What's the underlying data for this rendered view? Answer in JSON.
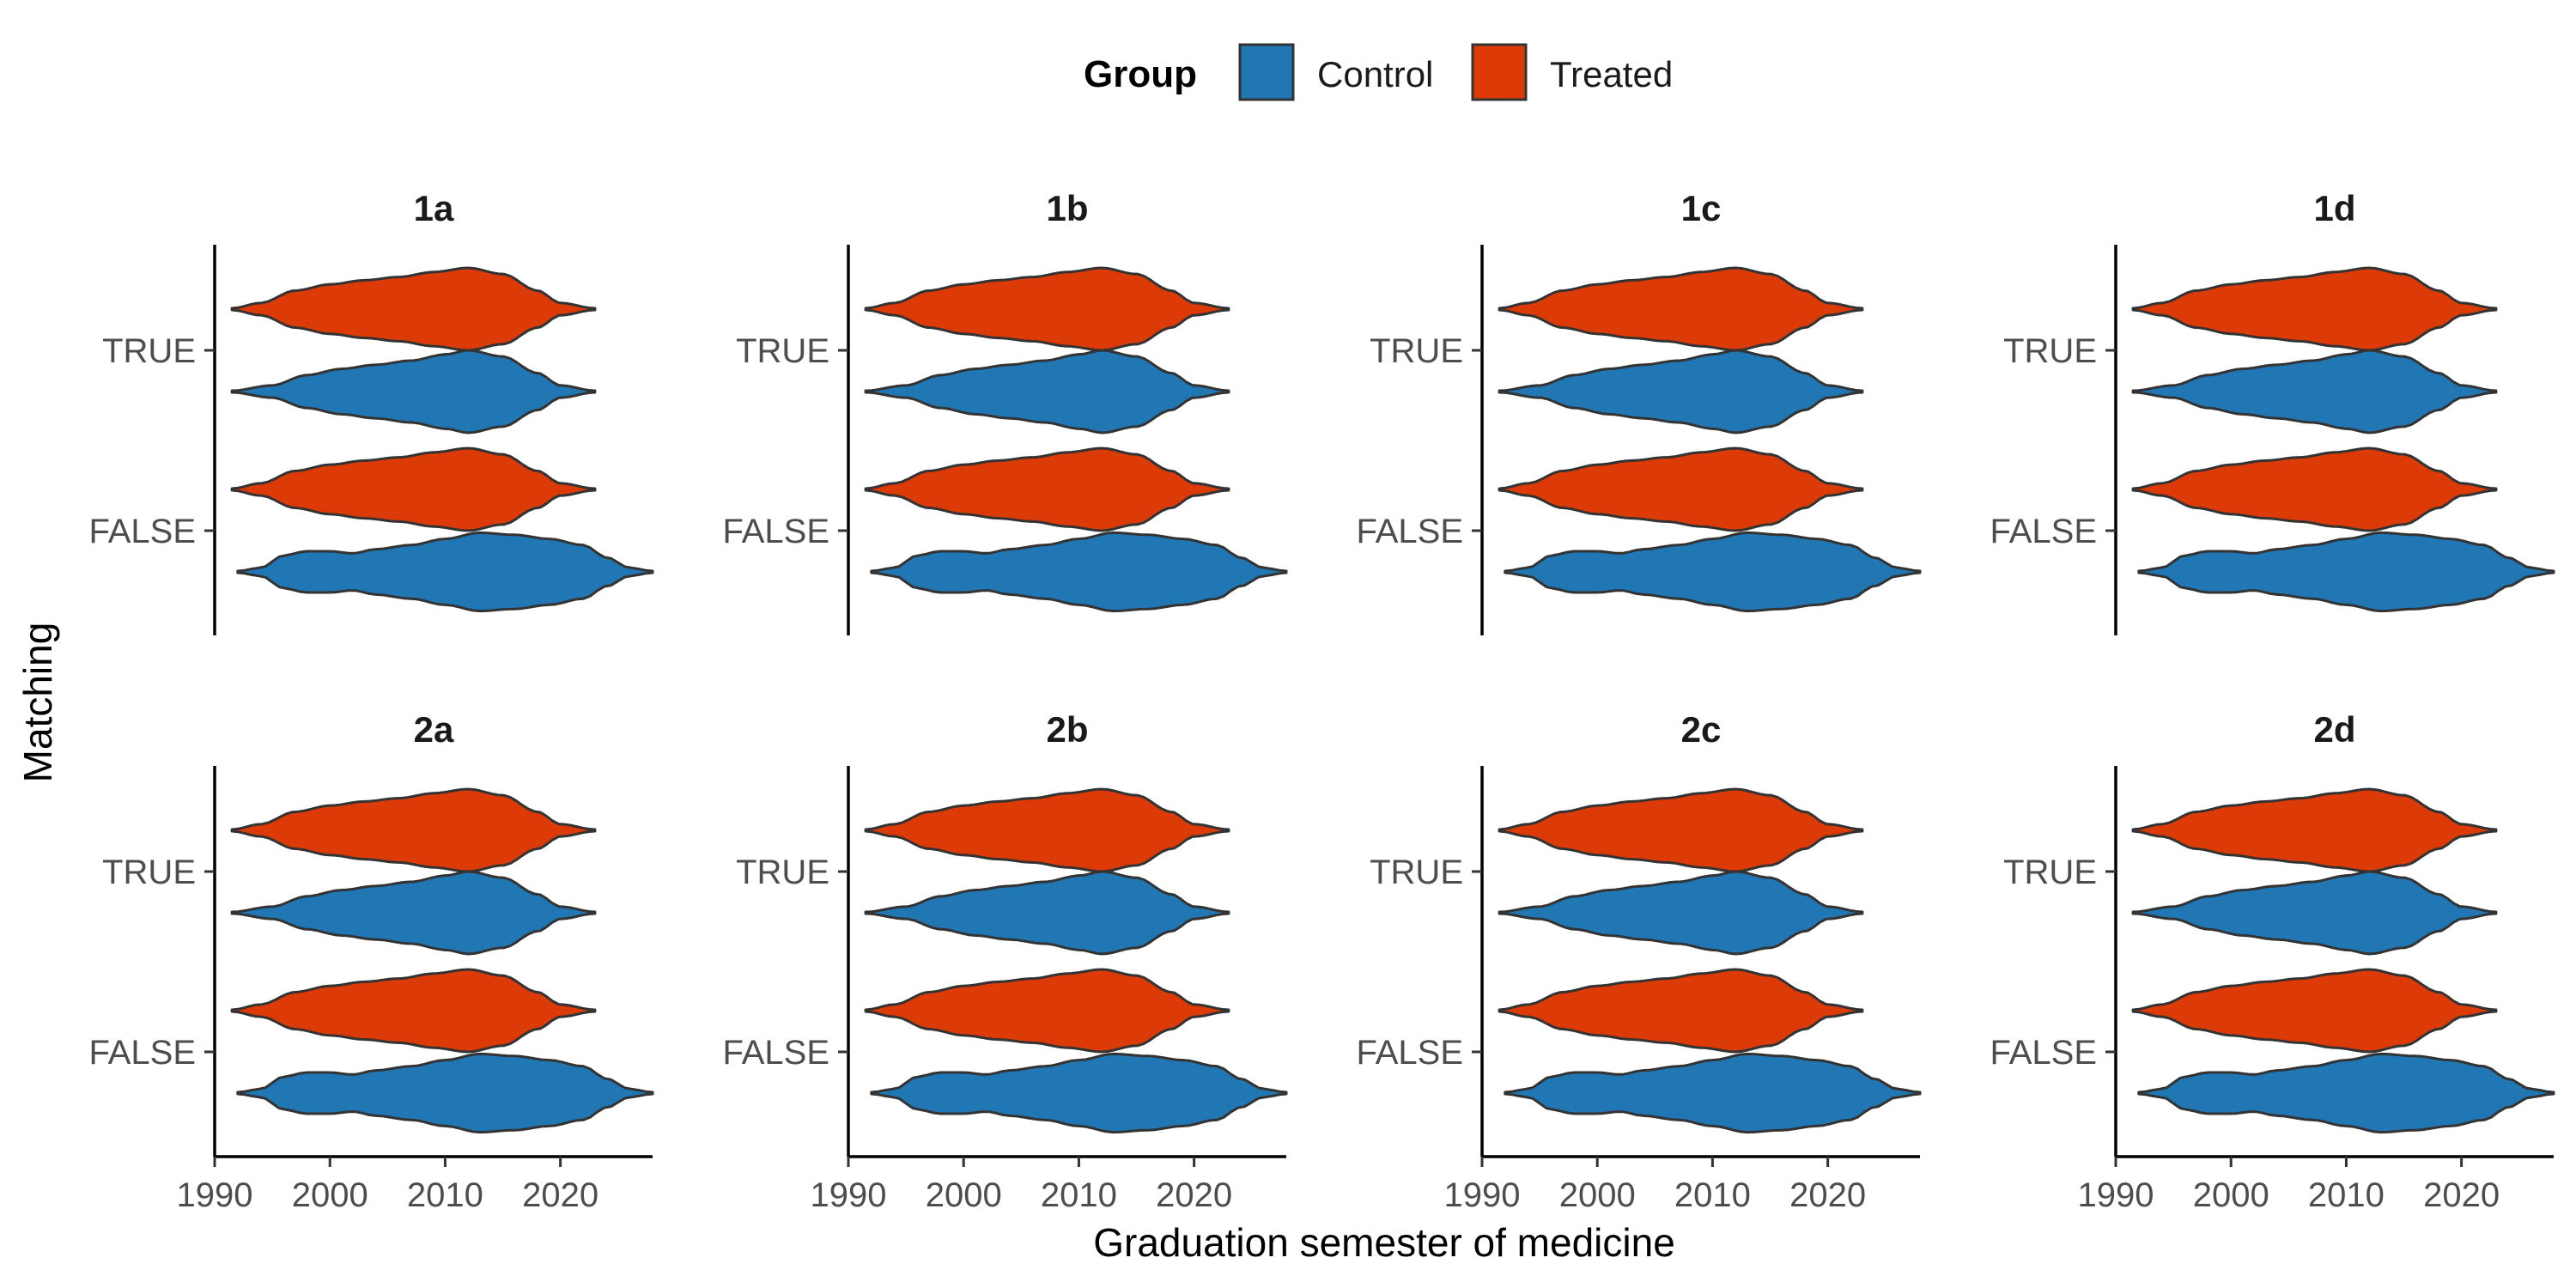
{
  "chart_data": {
    "type": "violin",
    "orientation": "horizontal",
    "xlabel": "Graduation semester of medicine",
    "ylabel": "Matching",
    "xlim": [
      1990,
      2028
    ],
    "x_ticks": [
      1990,
      2000,
      2010,
      2020
    ],
    "y_categories": [
      "TRUE",
      "FALSE"
    ],
    "legend": {
      "title": "Group",
      "position": "top",
      "items": [
        {
          "name": "Control",
          "color": "#2077B4"
        },
        {
          "name": "Treated",
          "color": "#DC3A06"
        }
      ]
    },
    "panels": [
      "1a",
      "1b",
      "1c",
      "1d",
      "2a",
      "2b",
      "2c",
      "2d"
    ],
    "series": [
      {
        "matching": "TRUE",
        "group": "Treated",
        "x_range": [
          1991.5,
          2023
        ],
        "density": [
          [
            1991.5,
            0.02
          ],
          [
            1994,
            0.15
          ],
          [
            1997,
            0.45
          ],
          [
            2000,
            0.6
          ],
          [
            2003,
            0.7
          ],
          [
            2006,
            0.78
          ],
          [
            2009,
            0.9
          ],
          [
            2012,
            1.0
          ],
          [
            2015,
            0.85
          ],
          [
            2018,
            0.45
          ],
          [
            2020,
            0.15
          ],
          [
            2023,
            0.02
          ]
        ]
      },
      {
        "matching": "TRUE",
        "group": "Control",
        "x_range": [
          1991.5,
          2023
        ],
        "density": [
          [
            1991.5,
            0.02
          ],
          [
            1995,
            0.15
          ],
          [
            1998,
            0.4
          ],
          [
            2001,
            0.55
          ],
          [
            2004,
            0.65
          ],
          [
            2007,
            0.75
          ],
          [
            2010,
            0.9
          ],
          [
            2012,
            1.0
          ],
          [
            2015,
            0.85
          ],
          [
            2018,
            0.45
          ],
          [
            2020,
            0.15
          ],
          [
            2023,
            0.02
          ]
        ]
      },
      {
        "matching": "FALSE",
        "group": "Treated",
        "x_range": [
          1991.5,
          2023
        ],
        "density": [
          [
            1991.5,
            0.02
          ],
          [
            1994,
            0.15
          ],
          [
            1997,
            0.45
          ],
          [
            2000,
            0.6
          ],
          [
            2003,
            0.7
          ],
          [
            2006,
            0.78
          ],
          [
            2009,
            0.9
          ],
          [
            2012,
            1.0
          ],
          [
            2015,
            0.85
          ],
          [
            2018,
            0.45
          ],
          [
            2020,
            0.15
          ],
          [
            2023,
            0.02
          ]
        ]
      },
      {
        "matching": "FALSE",
        "group": "Control",
        "x_range": [
          1992,
          2028
        ],
        "density": [
          [
            1992,
            0.02
          ],
          [
            1994,
            0.1
          ],
          [
            1996,
            0.4
          ],
          [
            1998,
            0.5
          ],
          [
            2000,
            0.5
          ],
          [
            2002,
            0.45
          ],
          [
            2004,
            0.55
          ],
          [
            2007,
            0.65
          ],
          [
            2010,
            0.8
          ],
          [
            2013,
            0.95
          ],
          [
            2016,
            0.9
          ],
          [
            2019,
            0.8
          ],
          [
            2022,
            0.65
          ],
          [
            2024,
            0.35
          ],
          [
            2026,
            0.1
          ],
          [
            2028,
            0.02
          ]
        ]
      }
    ]
  }
}
